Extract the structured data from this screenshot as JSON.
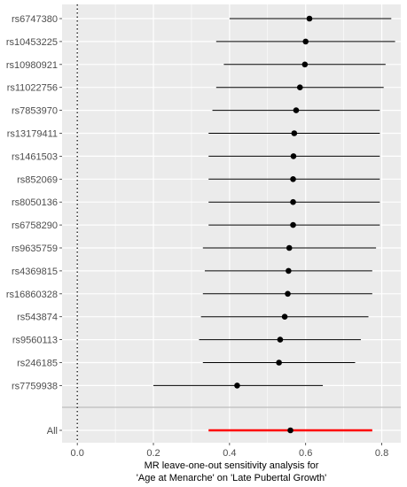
{
  "chart_data": {
    "type": "forest",
    "title": "",
    "xlabel_lines": [
      "MR leave-one-out sensitivity analysis for",
      "'Age at Menarche' on 'Late Pubertal Growth'"
    ],
    "ylabel": "",
    "xlim": [
      -0.04,
      0.85
    ],
    "x_ticks": [
      0.0,
      0.2,
      0.4,
      0.6,
      0.8
    ],
    "x_tick_labels": [
      "0.0",
      "0.2",
      "0.4",
      "0.6",
      "0.8"
    ],
    "reference_line": 0,
    "grid": true,
    "snps": [
      {
        "label": "rs6747380",
        "estimate": 0.61,
        "lower": 0.4,
        "upper": 0.825
      },
      {
        "label": "rs10453225",
        "estimate": 0.6,
        "lower": 0.365,
        "upper": 0.835
      },
      {
        "label": "rs10980921",
        "estimate": 0.598,
        "lower": 0.385,
        "upper": 0.81
      },
      {
        "label": "rs11022756",
        "estimate": 0.585,
        "lower": 0.365,
        "upper": 0.805
      },
      {
        "label": "rs7853970",
        "estimate": 0.575,
        "lower": 0.355,
        "upper": 0.795
      },
      {
        "label": "rs13179411",
        "estimate": 0.57,
        "lower": 0.345,
        "upper": 0.795
      },
      {
        "label": "rs1461503",
        "estimate": 0.568,
        "lower": 0.345,
        "upper": 0.795
      },
      {
        "label": "rs852069",
        "estimate": 0.567,
        "lower": 0.345,
        "upper": 0.795
      },
      {
        "label": "rs8050136",
        "estimate": 0.567,
        "lower": 0.345,
        "upper": 0.795
      },
      {
        "label": "rs6758290",
        "estimate": 0.567,
        "lower": 0.345,
        "upper": 0.795
      },
      {
        "label": "rs9635759",
        "estimate": 0.557,
        "lower": 0.33,
        "upper": 0.785
      },
      {
        "label": "rs4369815",
        "estimate": 0.555,
        "lower": 0.335,
        "upper": 0.775
      },
      {
        "label": "rs16860328",
        "estimate": 0.553,
        "lower": 0.33,
        "upper": 0.775
      },
      {
        "label": "rs543874",
        "estimate": 0.545,
        "lower": 0.325,
        "upper": 0.765
      },
      {
        "label": "rs9560113",
        "estimate": 0.533,
        "lower": 0.32,
        "upper": 0.745
      },
      {
        "label": "rs246185",
        "estimate": 0.53,
        "lower": 0.33,
        "upper": 0.73
      },
      {
        "label": "rs7759938",
        "estimate": 0.42,
        "lower": 0.2,
        "upper": 0.645
      }
    ],
    "overall": {
      "label": "All",
      "estimate": 0.56,
      "lower": 0.345,
      "upper": 0.775
    },
    "colors": {
      "panel": "#ebebeb",
      "grid_major": "#ffffff",
      "point": "#000000",
      "overall": "#ff0000",
      "separator": "#bdbdbd"
    }
  }
}
